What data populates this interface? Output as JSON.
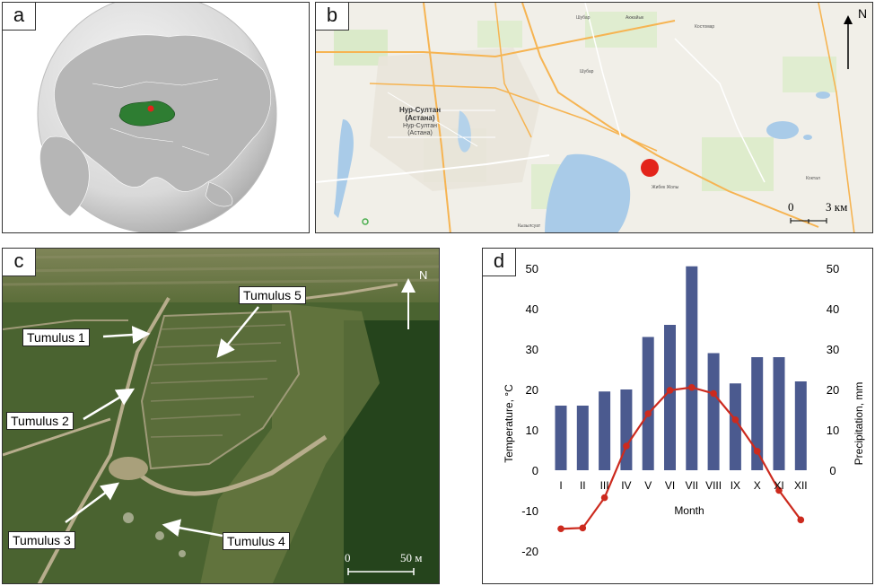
{
  "panels": {
    "a": {
      "label": "a"
    },
    "b": {
      "label": "b",
      "north": "N",
      "scale_zero": "0",
      "scale_value": "3 км",
      "city_name_1": "Нур-Султан",
      "city_name_2": "(Астана)",
      "city_sub_1": "Нур-Султан",
      "city_sub_2": "(Астана)",
      "places": [
        "Шубар",
        "Шубар",
        "Акжайык",
        "Костомар",
        "Жибек Жолы",
        "Кызылсуат",
        "Коктал"
      ],
      "site_color": "#e3241b"
    },
    "c": {
      "label": "c",
      "north": "N",
      "scale_zero": "0",
      "scale_value": "50 м",
      "tumuli": [
        "Tumulus 1",
        "Tumulus 2",
        "Tumulus 3",
        "Tumulus 4",
        "Tumulus 5"
      ]
    },
    "d": {
      "label": "d"
    }
  },
  "colors": {
    "kazakhstan": "#2e7d32",
    "bars": "#4b5a8f",
    "temperature_line": "#cc2a1e",
    "site_marker": "#e3241b"
  },
  "chart_data": {
    "type": "bar",
    "categories": [
      "I",
      "II",
      "III",
      "IV",
      "V",
      "VI",
      "VII",
      "VIII",
      "IX",
      "X",
      "XI",
      "XII"
    ],
    "xlabel": "Month",
    "ylabel_left": "Temperature, °C",
    "ylabel_right": "Precipitation, mm",
    "ylim_left": [
      -20,
      50
    ],
    "ylim_right": [
      0,
      50
    ],
    "yticks_left": [
      -20,
      -10,
      0,
      10,
      20,
      30,
      40,
      50
    ],
    "yticks_right": [
      0,
      10,
      20,
      30,
      40,
      50
    ],
    "series": [
      {
        "name": "Precipitation, mm",
        "kind": "bar",
        "axis": "right",
        "values": [
          16,
          16,
          19.5,
          20,
          33,
          36,
          50.5,
          29,
          21.5,
          28,
          28,
          22
        ]
      },
      {
        "name": "Temperature, °C",
        "kind": "line",
        "axis": "left",
        "values": [
          -14.5,
          -14.3,
          -6.8,
          6,
          14,
          19.8,
          20.5,
          19,
          12.5,
          4.7,
          -5,
          -12.3
        ]
      }
    ],
    "grid": false,
    "legend": "none"
  }
}
